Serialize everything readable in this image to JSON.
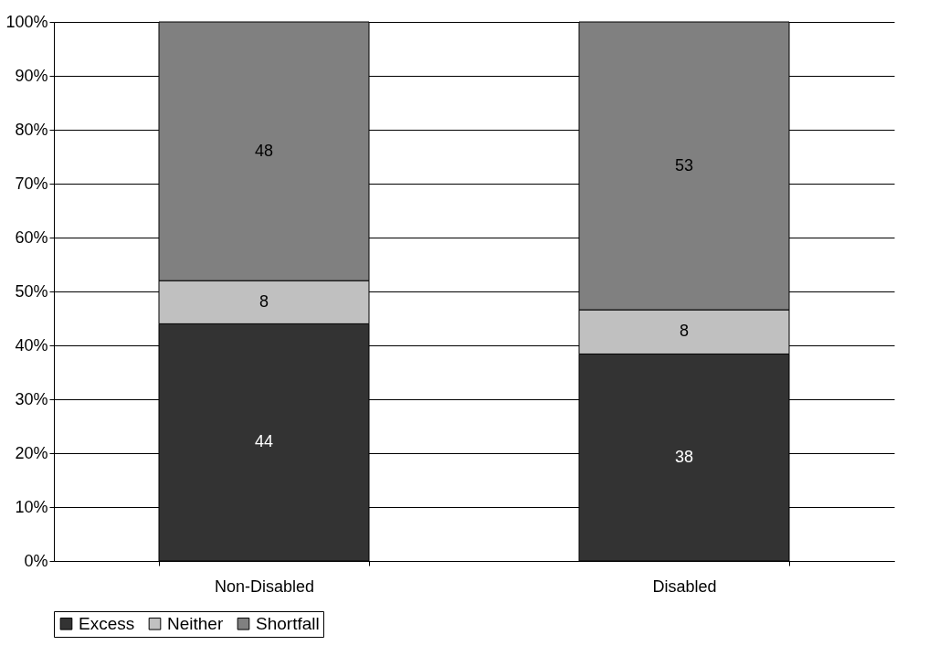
{
  "chart_data": {
    "type": "bar",
    "stacked": true,
    "categories": [
      "Non-Disabled",
      "Disabled"
    ],
    "series": [
      {
        "name": "Excess",
        "color": "#333333",
        "values": [
          44,
          38.4
        ],
        "value_labels": [
          "44",
          "38"
        ]
      },
      {
        "name": "Neither",
        "color": "#c0c0c0",
        "values": [
          8,
          8.2
        ],
        "value_labels": [
          "8",
          "8"
        ]
      },
      {
        "name": "Shortfall",
        "color": "#808080",
        "values": [
          48,
          53.4
        ],
        "value_labels": [
          "48",
          "53"
        ]
      }
    ],
    "ylim": [
      0,
      100
    ],
    "yticks": [
      {
        "value": 0,
        "label": "0%"
      },
      {
        "value": 10,
        "label": "10%"
      },
      {
        "value": 20,
        "label": "20%"
      },
      {
        "value": 30,
        "label": "30%"
      },
      {
        "value": 40,
        "label": "40%"
      },
      {
        "value": 50,
        "label": "50%"
      },
      {
        "value": 60,
        "label": "60%"
      },
      {
        "value": 70,
        "label": "70%"
      },
      {
        "value": 80,
        "label": "80%"
      },
      {
        "value": 90,
        "label": "90%"
      },
      {
        "value": 100,
        "label": "100%"
      }
    ],
    "grid": "y",
    "legend": "bottom"
  }
}
